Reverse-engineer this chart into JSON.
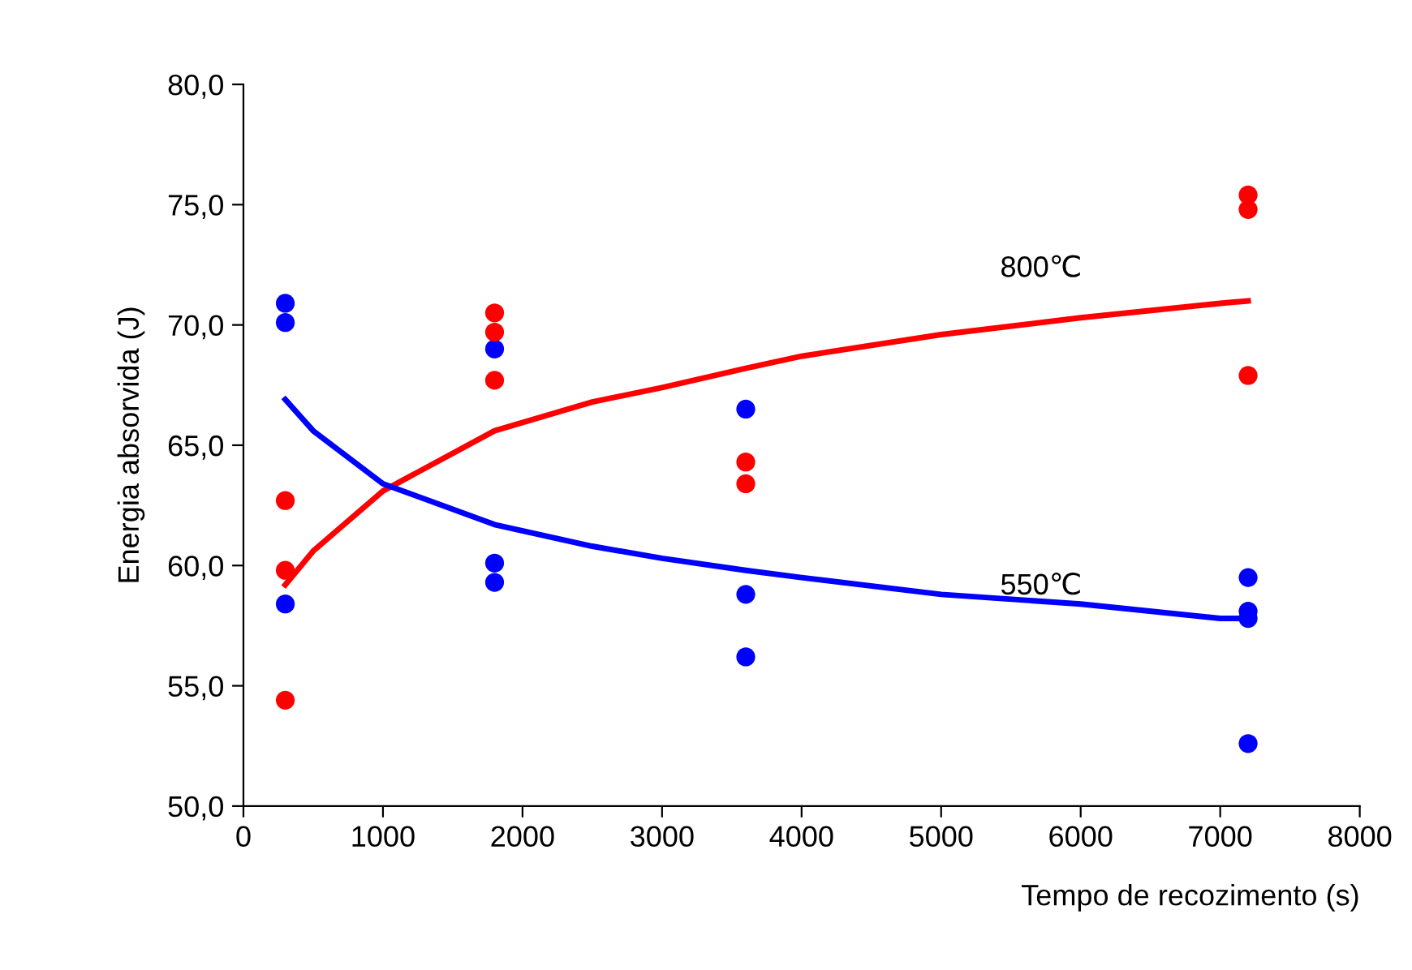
{
  "chart_data": {
    "type": "scatter",
    "xlabel": "Tempo de recozimento (s)",
    "ylabel": "Energia absorvida (J)",
    "xlim": [
      0,
      8000
    ],
    "xticks": [
      0,
      1000,
      2000,
      3000,
      4000,
      5000,
      6000,
      7000,
      8000
    ],
    "ylim": [
      50,
      80
    ],
    "yticks": [
      {
        "value": 50,
        "label": "50,0"
      },
      {
        "value": 55,
        "label": "55,0"
      },
      {
        "value": 60,
        "label": "60,0"
      },
      {
        "value": 65,
        "label": "65,0"
      },
      {
        "value": 70,
        "label": "70,0"
      },
      {
        "value": 75,
        "label": "75,0"
      },
      {
        "value": 80,
        "label": "80,0"
      }
    ],
    "grid": false,
    "legend": false,
    "marker": "circle",
    "series": [
      {
        "color": "#0000ff",
        "x": [
          300,
          300,
          300,
          1800,
          1800,
          1800,
          3600,
          3600,
          3600,
          7200,
          7200,
          7200,
          7200
        ],
        "values": [
          70.9,
          70.1,
          58.4,
          69.0,
          60.1,
          59.3,
          66.5,
          58.8,
          56.2,
          59.5,
          58.1,
          57.8,
          52.6
        ]
      },
      {
        "color": "#ff0000",
        "x": [
          300,
          300,
          300,
          1800,
          1800,
          1800,
          3600,
          3600,
          7200,
          7200,
          7200
        ],
        "values": [
          62.7,
          59.8,
          54.4,
          70.5,
          69.7,
          67.7,
          64.3,
          63.4,
          75.4,
          74.8,
          67.9
        ]
      },
      {
        "type": "line",
        "name": "800℃",
        "color": "#ff0000",
        "marker": "none",
        "x": [
          300,
          500,
          1000,
          1800,
          2500,
          3000,
          3600,
          4000,
          5000,
          6000,
          7000,
          7200
        ],
        "values": [
          59.2,
          60.6,
          63.1,
          65.6,
          66.8,
          67.4,
          68.2,
          68.7,
          69.6,
          70.3,
          70.9,
          71.0
        ]
      },
      {
        "type": "line",
        "name": "550℃",
        "color": "#0000ff",
        "marker": "none",
        "x": [
          300,
          500,
          1000,
          1800,
          2500,
          3000,
          3600,
          4000,
          5000,
          6000,
          7000,
          7200
        ],
        "values": [
          66.9,
          65.6,
          63.4,
          61.7,
          60.8,
          60.3,
          59.8,
          59.5,
          58.8,
          58.4,
          57.8,
          57.8
        ]
      }
    ]
  }
}
